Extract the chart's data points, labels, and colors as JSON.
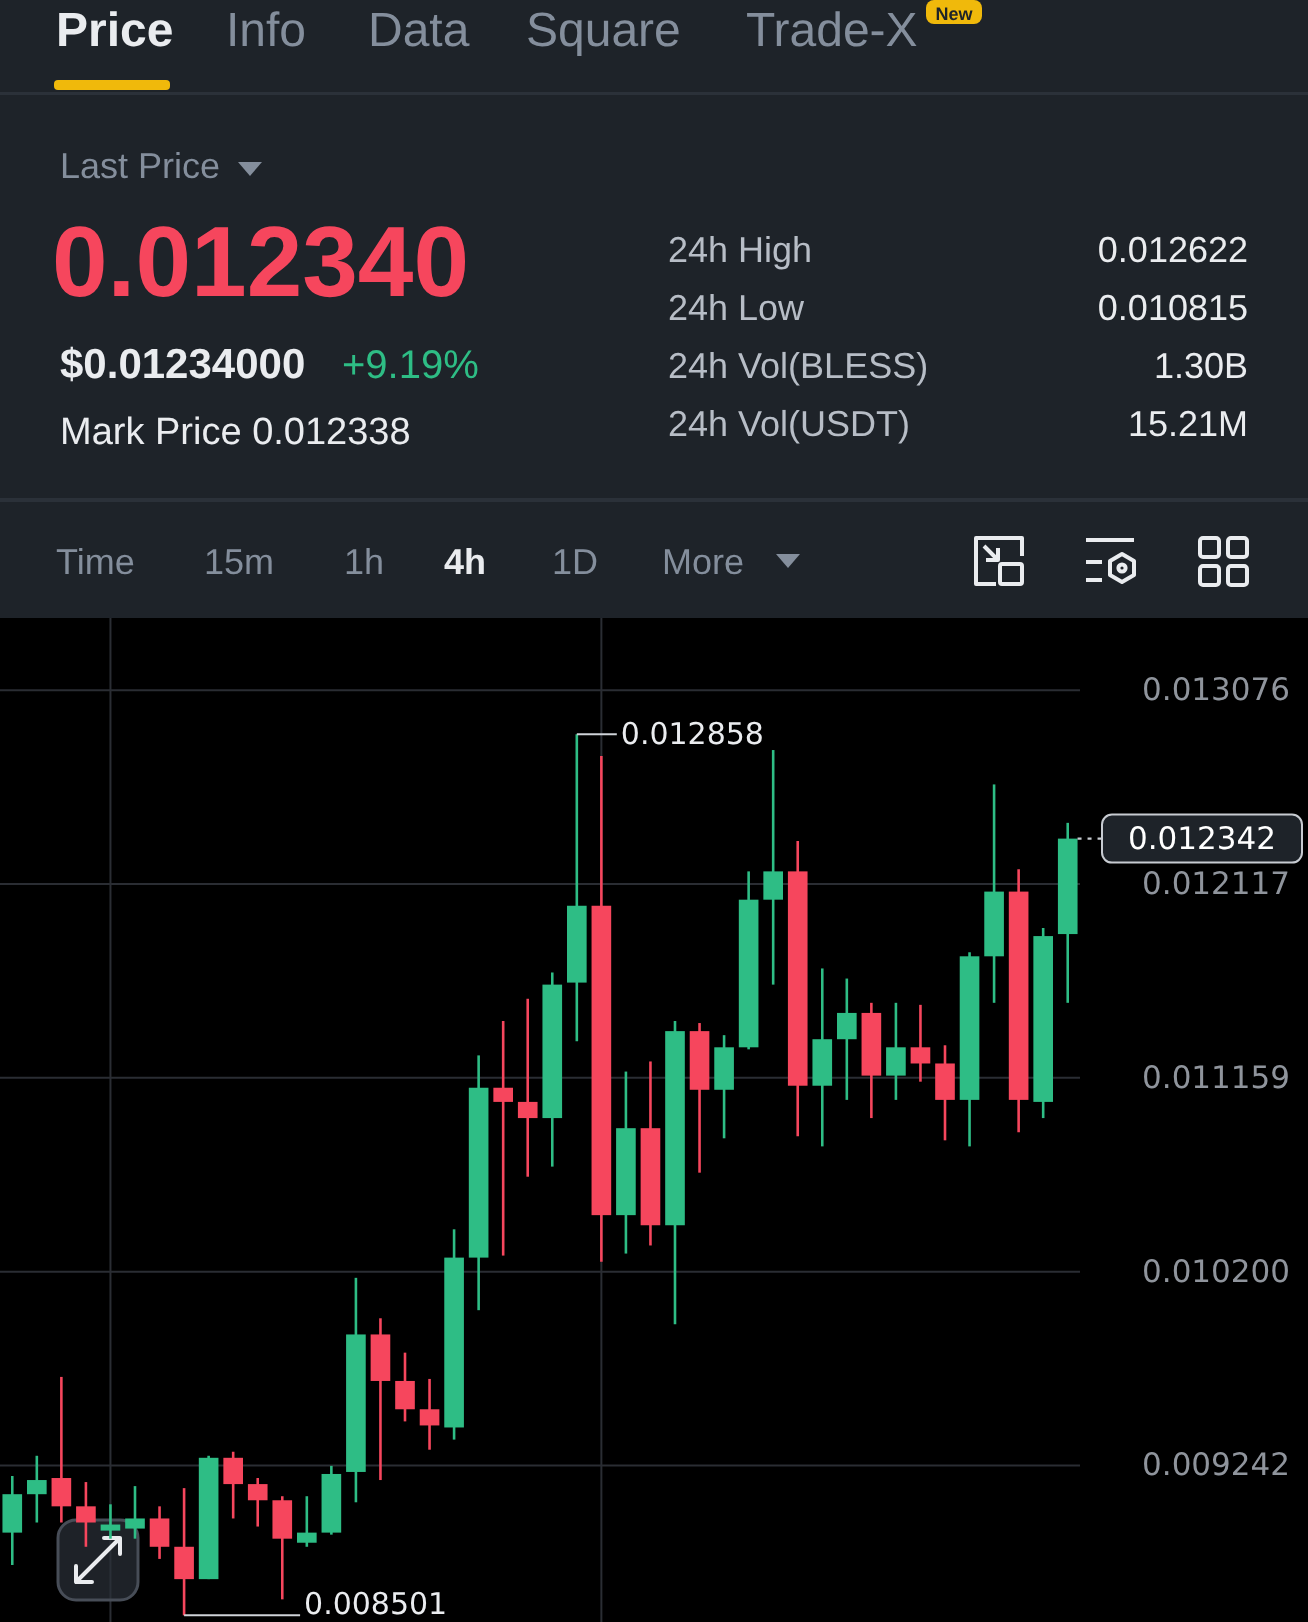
{
  "chart_data": [
    {
      "type": "other",
      "annotations": [
        "Price",
        "Info",
        "Data",
        "Square",
        "Trade-X",
        "New",
        "Last Price",
        "0.012340",
        "$0.01234000",
        "+9.19%",
        "Mark Price 0.012338",
        "24h High",
        "0.012622",
        "24h Low",
        "0.010815",
        "24h Vol(BLESS)",
        "1.30B",
        "24h Vol(USDT)",
        "15.21M",
        "Time",
        "15m",
        "1h",
        "4h",
        "1D",
        "More"
      ]
    },
    {
      "type": "candlestick",
      "categories": [
        null,
        null,
        null,
        null,
        null,
        null,
        null,
        null,
        null,
        null,
        null,
        null,
        null,
        null,
        null,
        null,
        null,
        null,
        null,
        null,
        null,
        null,
        null,
        null,
        null,
        null,
        null,
        null,
        null,
        null,
        null,
        null,
        null,
        null,
        null,
        null,
        null,
        null,
        null,
        null,
        null,
        null,
        null,
        null
      ],
      "ohlc": [
        [
          0.00891,
          0.00919,
          0.00875,
          0.0091
        ],
        [
          0.0091,
          0.00929,
          0.00896,
          0.00917
        ],
        [
          0.00918,
          0.00968,
          0.00896,
          0.00904
        ],
        [
          0.00904,
          0.00916,
          0.00884,
          0.00896
        ],
        [
          0.00892,
          0.00905,
          0.00888,
          0.00895
        ],
        [
          0.00893,
          0.00914,
          0.00888,
          0.00898
        ],
        [
          0.00898,
          0.00904,
          0.00878,
          0.00884
        ],
        [
          0.00884,
          0.00913,
          0.008501,
          0.00868
        ],
        [
          0.00868,
          0.00929,
          0.00868,
          0.00928
        ],
        [
          0.00928,
          0.00931,
          0.00898,
          0.00915
        ],
        [
          0.00915,
          0.00918,
          0.00894,
          0.00907
        ],
        [
          0.00907,
          0.00909,
          0.00858,
          0.00888
        ],
        [
          0.00886,
          0.00909,
          0.00884,
          0.00891
        ],
        [
          0.00891,
          0.00924,
          0.0089,
          0.0092
        ],
        [
          0.00921,
          0.01017,
          0.00906,
          0.00989
        ],
        [
          0.00989,
          0.00997,
          0.00917,
          0.00966
        ],
        [
          0.00966,
          0.0098,
          0.00946,
          0.00952
        ],
        [
          0.00952,
          0.00967,
          0.00932,
          0.00944
        ],
        [
          0.00943,
          0.01041,
          0.00937,
          0.01027
        ],
        [
          0.01027,
          0.01127,
          0.01001,
          0.01111
        ],
        [
          0.01111,
          0.01144,
          0.01028,
          0.01104
        ],
        [
          0.01104,
          0.01155,
          0.01067,
          0.01096
        ],
        [
          0.01096,
          0.01168,
          0.01072,
          0.01162
        ],
        [
          0.01163,
          0.012858,
          0.01134,
          0.01201
        ],
        [
          0.01201,
          0.01275,
          0.01025,
          0.01048
        ],
        [
          0.01048,
          0.01119,
          0.01029,
          0.01091
        ],
        [
          0.01091,
          0.01124,
          0.01033,
          0.01043
        ],
        [
          0.01043,
          0.01144,
          0.00994,
          0.01139
        ],
        [
          0.01139,
          0.01143,
          0.01069,
          0.0111
        ],
        [
          0.0111,
          0.01137,
          0.01086,
          0.01131
        ],
        [
          0.01131,
          0.01218,
          0.0113,
          0.01204
        ],
        [
          0.01204,
          0.01278,
          0.01162,
          0.01218
        ],
        [
          0.01218,
          0.01233,
          0.01087,
          0.01112
        ],
        [
          0.01112,
          0.0117,
          0.01082,
          0.01135
        ],
        [
          0.01135,
          0.01165,
          0.01105,
          0.01148
        ],
        [
          0.01148,
          0.01153,
          0.01096,
          0.01117
        ],
        [
          0.01117,
          0.01153,
          0.01105,
          0.01131
        ],
        [
          0.01131,
          0.01152,
          0.01114,
          0.01123
        ],
        [
          0.01123,
          0.01132,
          0.01085,
          0.01105
        ],
        [
          0.01105,
          0.01178,
          0.01082,
          0.01176
        ],
        [
          0.01176,
          0.01261,
          0.01153,
          0.01208
        ],
        [
          0.01208,
          0.01219,
          0.01089,
          0.01105
        ],
        [
          0.01104,
          0.0119,
          0.01096,
          0.01186
        ],
        [
          0.01187,
          0.01242,
          0.01153,
          0.012342
        ]
      ],
      "colors": [
        "#2ebd85",
        "#2ebd85",
        "#f6465d",
        "#f6465d",
        "#2ebd85",
        "#2ebd85",
        "#f6465d",
        "#f6465d",
        "#2ebd85",
        "#f6465d",
        "#f6465d",
        "#f6465d",
        "#2ebd85",
        "#2ebd85",
        "#2ebd85",
        "#f6465d",
        "#f6465d",
        "#f6465d",
        "#2ebd85",
        "#2ebd85",
        "#f6465d",
        "#f6465d",
        "#2ebd85",
        "#2ebd85",
        "#f6465d",
        "#2ebd85",
        "#f6465d",
        "#2ebd85",
        "#f6465d",
        "#2ebd85",
        "#2ebd85",
        "#2ebd85",
        "#f6465d",
        "#2ebd85",
        "#2ebd85",
        "#f6465d",
        "#2ebd85",
        "#f6465d",
        "#f6465d",
        "#2ebd85",
        "#2ebd85",
        "#f6465d",
        "#2ebd85",
        "#2ebd85"
      ],
      "ylim": [
        0.008468,
        0.013433
      ],
      "yticks": [
        0.013076,
        0.012117,
        0.011159,
        {
          "value": 0.0102,
          "label": "0.010200"
        },
        0.009242
      ],
      "grid": true,
      "ref_lines": [
        {
          "axis": "y",
          "value": 0.012342,
          "label": "0.012342",
          "line_style": "dotted",
          "color": "#c7cbd1"
        }
      ],
      "annotations": [
        "0.012858",
        "0.008501"
      ]
    }
  ]
}
